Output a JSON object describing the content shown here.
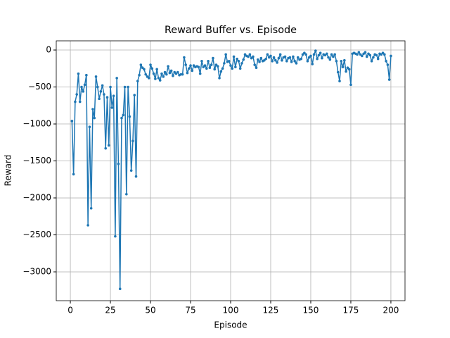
{
  "chart_data": {
    "type": "line",
    "title": "Reward Buffer vs. Episode",
    "xlabel": "Episode",
    "ylabel": "Reward",
    "x": [
      1,
      2,
      3,
      4,
      5,
      6,
      7,
      8,
      9,
      10,
      11,
      12,
      13,
      14,
      15,
      16,
      17,
      18,
      19,
      20,
      21,
      22,
      23,
      24,
      25,
      26,
      27,
      28,
      29,
      30,
      31,
      32,
      33,
      34,
      35,
      36,
      37,
      38,
      39,
      40,
      41,
      42,
      43,
      44,
      45,
      46,
      47,
      48,
      49,
      50,
      51,
      52,
      53,
      54,
      55,
      56,
      57,
      58,
      59,
      60,
      61,
      62,
      63,
      64,
      65,
      66,
      67,
      68,
      69,
      70,
      71,
      72,
      73,
      74,
      75,
      76,
      77,
      78,
      79,
      80,
      81,
      82,
      83,
      84,
      85,
      86,
      87,
      88,
      89,
      90,
      91,
      92,
      93,
      94,
      95,
      96,
      97,
      98,
      99,
      100,
      101,
      102,
      103,
      104,
      105,
      106,
      107,
      108,
      109,
      110,
      111,
      112,
      113,
      114,
      115,
      116,
      117,
      118,
      119,
      120,
      121,
      122,
      123,
      124,
      125,
      126,
      127,
      128,
      129,
      130,
      131,
      132,
      133,
      134,
      135,
      136,
      137,
      138,
      139,
      140,
      141,
      142,
      143,
      144,
      145,
      146,
      147,
      148,
      149,
      150,
      151,
      152,
      153,
      154,
      155,
      156,
      157,
      158,
      159,
      160,
      161,
      162,
      163,
      164,
      165,
      166,
      167,
      168,
      169,
      170,
      171,
      172,
      173,
      174,
      175,
      176,
      177,
      178,
      179,
      180,
      181,
      182,
      183,
      184,
      185,
      186,
      187,
      188,
      189,
      190,
      191,
      192,
      193,
      194,
      195,
      196,
      197,
      198,
      199,
      200
    ],
    "series": [
      {
        "name": "Reward",
        "color": "#1f77b4",
        "values": [
          -960,
          -1680,
          -700,
          -600,
          -320,
          -700,
          -500,
          -560,
          -470,
          -340,
          -2370,
          -1040,
          -2140,
          -800,
          -920,
          -360,
          -500,
          -660,
          -560,
          -480,
          -600,
          -1330,
          -640,
          -1290,
          -500,
          -780,
          -620,
          -2520,
          -380,
          -1540,
          -3230,
          -920,
          -880,
          -500,
          -1950,
          -500,
          -900,
          -1630,
          -1230,
          -610,
          -1710,
          -420,
          -340,
          -200,
          -240,
          -260,
          -330,
          -360,
          -380,
          -200,
          -250,
          -320,
          -390,
          -260,
          -380,
          -410,
          -320,
          -360,
          -300,
          -330,
          -220,
          -310,
          -280,
          -350,
          -300,
          -320,
          -300,
          -340,
          -330,
          -330,
          -100,
          -200,
          -310,
          -250,
          -210,
          -280,
          -210,
          -230,
          -220,
          -230,
          -320,
          -150,
          -230,
          -210,
          -250,
          -150,
          -240,
          -200,
          -110,
          -260,
          -200,
          -220,
          -380,
          -290,
          -250,
          -180,
          -60,
          -160,
          -150,
          -210,
          -250,
          -90,
          -230,
          -120,
          -150,
          -250,
          -180,
          -130,
          -60,
          -80,
          -90,
          -60,
          -110,
          -90,
          -200,
          -240,
          -130,
          -160,
          -110,
          -150,
          -140,
          -120,
          -60,
          -100,
          -80,
          -150,
          -100,
          -140,
          -170,
          -110,
          -60,
          -140,
          -100,
          -90,
          -150,
          -110,
          -100,
          -160,
          -90,
          -150,
          -180,
          -100,
          -130,
          -120,
          -60,
          -40,
          -60,
          -150,
          -100,
          -80,
          -190,
          -60,
          -10,
          -120,
          -70,
          -40,
          -110,
          -60,
          -70,
          -50,
          -100,
          -130,
          -60,
          -90,
          -60,
          -150,
          -300,
          -420,
          -150,
          -230,
          -140,
          -290,
          -240,
          -260,
          -470,
          -50,
          -40,
          -50,
          -60,
          -30,
          -60,
          -80,
          -50,
          -30,
          -90,
          -50,
          -70,
          -150,
          -100,
          -60,
          -70,
          -120,
          -50,
          -60,
          -40,
          -60,
          -150,
          -200,
          -400,
          -80
        ]
      }
    ],
    "xlim": [
      -8.8,
      208.8
    ],
    "ylim": [
      -3390,
      124
    ],
    "xticks": [
      0,
      25,
      50,
      75,
      100,
      125,
      150,
      175,
      200
    ],
    "yticks": [
      {
        "value": -3000,
        "label": "−3000"
      },
      {
        "value": -2500,
        "label": "−2500"
      },
      {
        "value": -2000,
        "label": "−2000"
      },
      {
        "value": -1500,
        "label": "−1500"
      },
      {
        "value": -1000,
        "label": "−1000"
      },
      {
        "value": -500,
        "label": "−500"
      },
      0
    ],
    "grid": true,
    "markers": true
  }
}
